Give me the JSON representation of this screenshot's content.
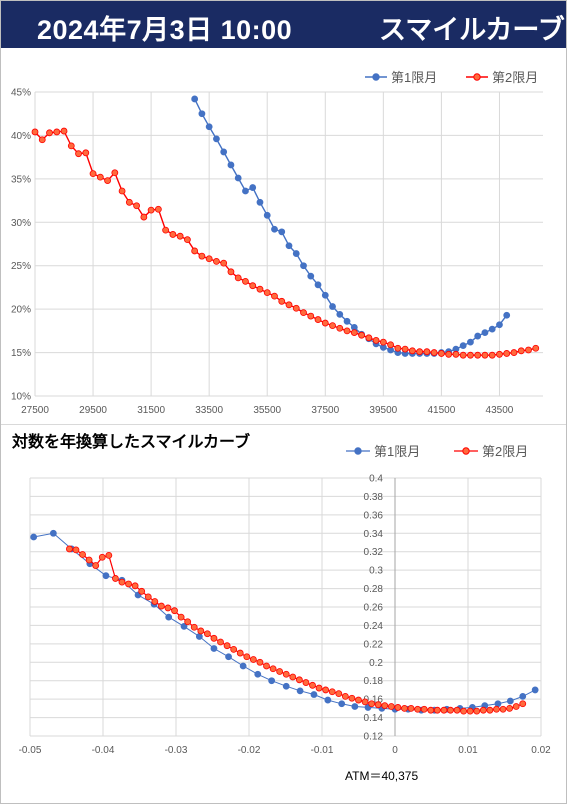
{
  "header": {
    "date_time": "2024年7月3日 10:00",
    "title": "スマイルカーブ"
  },
  "colors": {
    "header_bg": "#1a2b63",
    "series1": "#4472c4",
    "series2": "#ff0000",
    "series2_fill": "#ff6a3d",
    "grid": "#d9d9d9",
    "axis_text": "#595959"
  },
  "chart2_title": "対数を年換算したスマイルカーブ",
  "atm_label": "ATM＝40,375",
  "chart_data": [
    {
      "type": "line",
      "title": "",
      "xlabel": "",
      "ylabel": "",
      "xlim": [
        27500,
        45000
      ],
      "ylim": [
        10,
        45
      ],
      "x_ticks": [
        27500,
        29500,
        31500,
        33500,
        35500,
        37500,
        39500,
        41500,
        43500
      ],
      "x_tick_labels": [
        "27500",
        "29500",
        "31500",
        "33500",
        "35500",
        "37500",
        "39500",
        "41500",
        "43500"
      ],
      "y_ticks": [
        10,
        15,
        20,
        25,
        30,
        35,
        40,
        45
      ],
      "y_tick_labels": [
        "10%",
        "15%",
        "20%",
        "25%",
        "30%",
        "35%",
        "40%",
        "45%"
      ],
      "grid": true,
      "legend_position": "top-right",
      "series": [
        {
          "name": "第1限月",
          "color": "#4472c4",
          "x": [
            33000,
            33250,
            33500,
            33750,
            34000,
            34250,
            34500,
            34750,
            35000,
            35250,
            35500,
            35750,
            36000,
            36250,
            36500,
            36750,
            37000,
            37250,
            37500,
            37750,
            38000,
            38250,
            38500,
            38750,
            39000,
            39250,
            39500,
            39750,
            40000,
            40250,
            40500,
            40750,
            41000,
            41250,
            41500,
            41750,
            42000,
            42250,
            42500,
            42750,
            43000,
            43250,
            43500,
            43750
          ],
          "y": [
            44.2,
            42.5,
            41.0,
            39.6,
            38.1,
            36.6,
            35.1,
            33.6,
            34.0,
            32.3,
            30.8,
            29.2,
            28.9,
            27.3,
            26.4,
            25.0,
            23.8,
            22.8,
            21.6,
            20.3,
            19.4,
            18.6,
            17.9,
            17.1,
            16.6,
            16.0,
            15.6,
            15.3,
            15.0,
            14.9,
            14.9,
            14.9,
            14.9,
            14.9,
            15.0,
            15.1,
            15.4,
            15.8,
            16.2,
            16.9,
            17.3,
            17.7,
            18.2,
            19.3
          ]
        },
        {
          "name": "第2限月",
          "color": "#ff0000",
          "x": [
            27500,
            27750,
            28000,
            28250,
            28500,
            28750,
            29000,
            29250,
            29500,
            29750,
            30000,
            30250,
            30500,
            30750,
            31000,
            31250,
            31500,
            31750,
            32000,
            32250,
            32500,
            32750,
            33000,
            33250,
            33500,
            33750,
            34000,
            34250,
            34500,
            34750,
            35000,
            35250,
            35500,
            35750,
            36000,
            36250,
            36500,
            36750,
            37000,
            37250,
            37500,
            37750,
            38000,
            38250,
            38500,
            38750,
            39000,
            39250,
            39500,
            39750,
            40000,
            40250,
            40500,
            40750,
            41000,
            41250,
            41500,
            41750,
            42000,
            42250,
            42500,
            42750,
            43000,
            43250,
            43500,
            43750,
            44000,
            44250,
            44500,
            44750
          ],
          "y": [
            40.4,
            39.5,
            40.3,
            40.4,
            40.5,
            38.8,
            37.9,
            38.0,
            35.6,
            35.2,
            34.8,
            35.7,
            33.6,
            32.3,
            31.9,
            30.6,
            31.4,
            31.5,
            29.1,
            28.6,
            28.4,
            28.0,
            26.7,
            26.1,
            25.8,
            25.5,
            25.3,
            24.3,
            23.6,
            23.2,
            22.7,
            22.3,
            21.9,
            21.5,
            20.9,
            20.5,
            20.1,
            19.6,
            19.2,
            18.8,
            18.4,
            18.1,
            17.8,
            17.5,
            17.3,
            17.0,
            16.7,
            16.4,
            16.2,
            15.9,
            15.5,
            15.4,
            15.2,
            15.1,
            15.1,
            15.0,
            14.9,
            14.8,
            14.8,
            14.7,
            14.7,
            14.7,
            14.7,
            14.7,
            14.8,
            14.9,
            15.0,
            15.2,
            15.3,
            15.5
          ]
        }
      ]
    },
    {
      "type": "scatter",
      "title": "",
      "xlabel": "",
      "ylabel": "",
      "xlim": [
        -0.05,
        0.02
      ],
      "ylim": [
        0.12,
        0.4
      ],
      "x_ticks": [
        -0.05,
        -0.04,
        -0.03,
        -0.02,
        -0.01,
        0,
        0.01,
        0.02
      ],
      "x_tick_labels": [
        "-0.05",
        "-0.04",
        "-0.03",
        "-0.02",
        "-0.01",
        "0",
        "0.01",
        "0.02"
      ],
      "y_ticks": [
        0.12,
        0.14,
        0.16,
        0.18,
        0.2,
        0.22,
        0.24,
        0.26,
        0.28,
        0.3,
        0.32,
        0.34,
        0.36,
        0.38,
        0.4
      ],
      "y_tick_labels": [
        "0.12",
        "0.14",
        "0.16",
        "0.18",
        "0.2",
        "0.22",
        "0.24",
        "0.26",
        "0.28",
        "0.3",
        "0.32",
        "0.34",
        "0.36",
        "0.38",
        "0.4"
      ],
      "grid": true,
      "legend_position": "top-right",
      "series": [
        {
          "name": "第1限月",
          "color": "#4472c4",
          "x": [
            -0.0495,
            -0.0468,
            -0.0443,
            -0.0418,
            -0.0396,
            -0.0374,
            -0.0352,
            -0.033,
            -0.031,
            -0.0289,
            -0.0268,
            -0.0248,
            -0.0228,
            -0.0208,
            -0.0188,
            -0.0169,
            -0.0149,
            -0.013,
            -0.0111,
            -0.0092,
            -0.0073,
            -0.0055,
            -0.0037,
            -0.0018,
            0.0,
            0.0018,
            0.0036,
            0.0054,
            0.0071,
            0.0089,
            0.0106,
            0.0123,
            0.0141,
            0.0158,
            0.0175,
            0.0192
          ],
          "y": [
            0.336,
            0.34,
            0.323,
            0.307,
            0.294,
            0.289,
            0.273,
            0.263,
            0.249,
            0.239,
            0.228,
            0.215,
            0.206,
            0.196,
            0.187,
            0.18,
            0.174,
            0.169,
            0.165,
            0.159,
            0.155,
            0.152,
            0.151,
            0.15,
            0.149,
            0.149,
            0.148,
            0.148,
            0.149,
            0.15,
            0.151,
            0.153,
            0.155,
            0.158,
            0.163,
            0.17
          ]
        },
        {
          "name": "第2限月",
          "color": "#ff0000",
          "x": [
            -0.0446,
            -0.0437,
            -0.0428,
            -0.0419,
            -0.041,
            -0.0401,
            -0.0392,
            -0.0383,
            -0.0374,
            -0.0365,
            -0.0356,
            -0.0347,
            -0.0338,
            -0.0329,
            -0.032,
            -0.0311,
            -0.0302,
            -0.0293,
            -0.0284,
            -0.0275,
            -0.0266,
            -0.0257,
            -0.0248,
            -0.0239,
            -0.023,
            -0.0221,
            -0.0212,
            -0.0203,
            -0.0194,
            -0.0185,
            -0.0176,
            -0.0167,
            -0.0158,
            -0.0149,
            -0.014,
            -0.0131,
            -0.0122,
            -0.0113,
            -0.0104,
            -0.0095,
            -0.0086,
            -0.0077,
            -0.0068,
            -0.0059,
            -0.005,
            -0.0041,
            -0.0032,
            -0.0023,
            -0.0014,
            -0.0005,
            0.0004,
            0.0013,
            0.0022,
            0.0031,
            0.004,
            0.0049,
            0.0058,
            0.0067,
            0.0076,
            0.0085,
            0.0094,
            0.0103,
            0.0112,
            0.0121,
            0.013,
            0.0139,
            0.0148,
            0.0157,
            0.0166,
            0.0175
          ],
          "y": [
            0.323,
            0.322,
            0.317,
            0.311,
            0.305,
            0.314,
            0.316,
            0.291,
            0.287,
            0.285,
            0.283,
            0.277,
            0.271,
            0.266,
            0.261,
            0.259,
            0.256,
            0.249,
            0.244,
            0.238,
            0.234,
            0.231,
            0.226,
            0.222,
            0.218,
            0.214,
            0.21,
            0.206,
            0.203,
            0.2,
            0.196,
            0.193,
            0.19,
            0.187,
            0.184,
            0.181,
            0.178,
            0.175,
            0.172,
            0.17,
            0.168,
            0.166,
            0.163,
            0.161,
            0.159,
            0.157,
            0.155,
            0.154,
            0.153,
            0.152,
            0.151,
            0.15,
            0.15,
            0.149,
            0.149,
            0.148,
            0.148,
            0.148,
            0.148,
            0.148,
            0.147,
            0.147,
            0.147,
            0.148,
            0.148,
            0.149,
            0.149,
            0.15,
            0.152,
            0.155
          ]
        }
      ]
    }
  ]
}
